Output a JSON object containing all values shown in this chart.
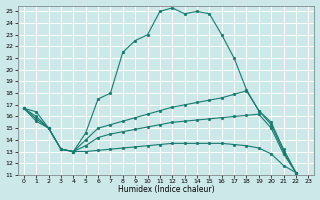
{
  "xlabel": "Humidex (Indice chaleur)",
  "bg_color": "#cce8e8",
  "grid_color": "#ffffff",
  "line_color": "#1a7a6e",
  "xlim": [
    -0.5,
    23.5
  ],
  "ylim": [
    11,
    25.5
  ],
  "xticks": [
    0,
    1,
    2,
    3,
    4,
    5,
    6,
    7,
    8,
    9,
    10,
    11,
    12,
    13,
    14,
    15,
    16,
    17,
    18,
    19,
    20,
    21,
    22,
    23
  ],
  "yticks": [
    11,
    12,
    13,
    14,
    15,
    16,
    17,
    18,
    19,
    20,
    21,
    22,
    23,
    24,
    25
  ],
  "series1_x": [
    0,
    1,
    2,
    3,
    4,
    5,
    6,
    7,
    8,
    9,
    10,
    11,
    12,
    13,
    14,
    15,
    16,
    17,
    18,
    19,
    20,
    21,
    22
  ],
  "series1_y": [
    16.7,
    16.4,
    15.0,
    13.2,
    13.0,
    14.6,
    17.5,
    18.0,
    21.5,
    22.5,
    23.0,
    25.0,
    25.3,
    24.8,
    25.0,
    24.8,
    23.0,
    21.0,
    18.3,
    16.5,
    15.3,
    13.0,
    11.2
  ],
  "series2_x": [
    0,
    1,
    2,
    3,
    4,
    5,
    6,
    7,
    8,
    9,
    10,
    11,
    12,
    13,
    14,
    15,
    16,
    17,
    18,
    19,
    20,
    21,
    22
  ],
  "series2_y": [
    16.7,
    16.0,
    15.0,
    13.2,
    13.0,
    14.0,
    15.0,
    15.3,
    15.6,
    15.9,
    16.2,
    16.5,
    16.8,
    17.0,
    17.2,
    17.4,
    17.6,
    17.9,
    18.2,
    16.5,
    15.5,
    13.2,
    11.2
  ],
  "series3_x": [
    0,
    1,
    2,
    3,
    4,
    5,
    6,
    7,
    8,
    9,
    10,
    11,
    12,
    13,
    14,
    15,
    16,
    17,
    18,
    19,
    20,
    21,
    22
  ],
  "series3_y": [
    16.7,
    15.8,
    15.0,
    13.2,
    13.0,
    13.5,
    14.2,
    14.5,
    14.7,
    14.9,
    15.1,
    15.3,
    15.5,
    15.6,
    15.7,
    15.8,
    15.9,
    16.0,
    16.1,
    16.2,
    15.0,
    12.8,
    11.2
  ],
  "series4_x": [
    0,
    1,
    2,
    3,
    4,
    5,
    6,
    7,
    8,
    9,
    10,
    11,
    12,
    13,
    14,
    15,
    16,
    17,
    18,
    19,
    20,
    21,
    22
  ],
  "series4_y": [
    16.7,
    15.6,
    15.0,
    13.2,
    13.0,
    13.0,
    13.1,
    13.2,
    13.3,
    13.4,
    13.5,
    13.6,
    13.7,
    13.7,
    13.7,
    13.7,
    13.7,
    13.6,
    13.5,
    13.3,
    12.8,
    11.8,
    11.2
  ]
}
